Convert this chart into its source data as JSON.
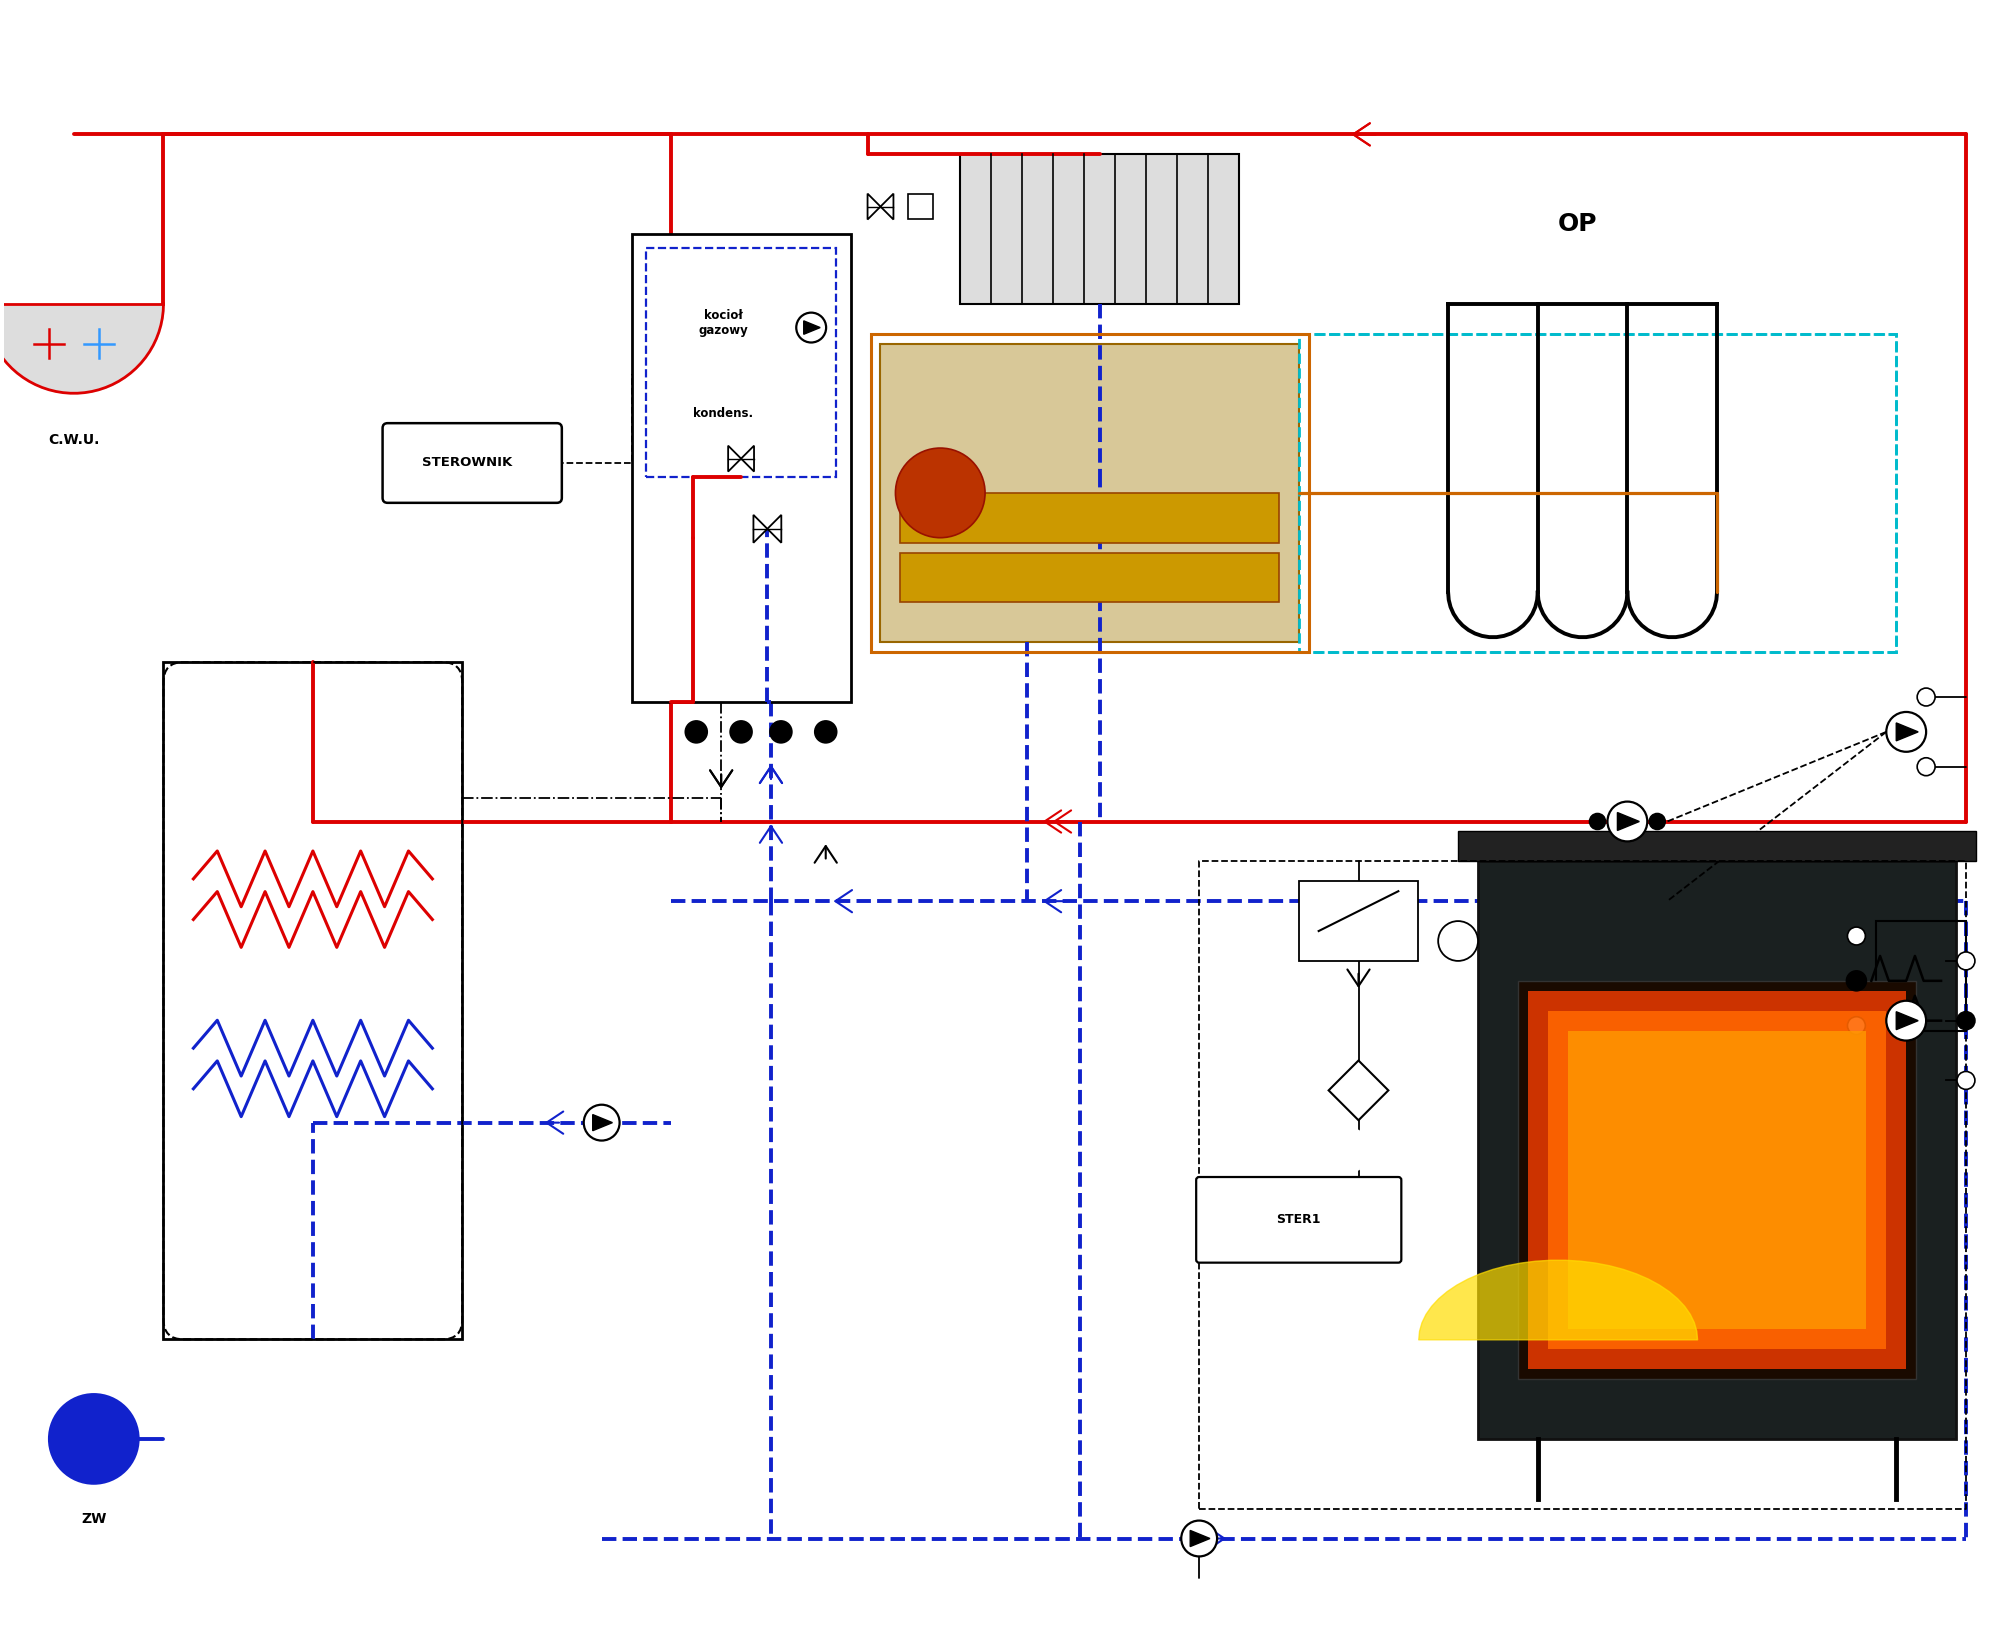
{
  "background_color": "#ffffff",
  "fig_width": 20.0,
  "fig_height": 16.43,
  "labels": {
    "cwu": "C.W.U.",
    "sterownik": "STEROWNIK",
    "kociol": "kocioł\ngazowy▲\nkondens.",
    "op": "OP",
    "zw": "ZW",
    "ster1": "STER1"
  },
  "colors": {
    "red": "#dd0000",
    "blue": "#1122cc",
    "black": "#000000",
    "orange": "#cc6600",
    "cyan": "#00bbcc",
    "white": "#ffffff",
    "lgray": "#dddddd",
    "mgray": "#aaaaaa"
  },
  "lw_thick": 2.8,
  "lw_med": 1.8,
  "lw_thin": 1.3
}
